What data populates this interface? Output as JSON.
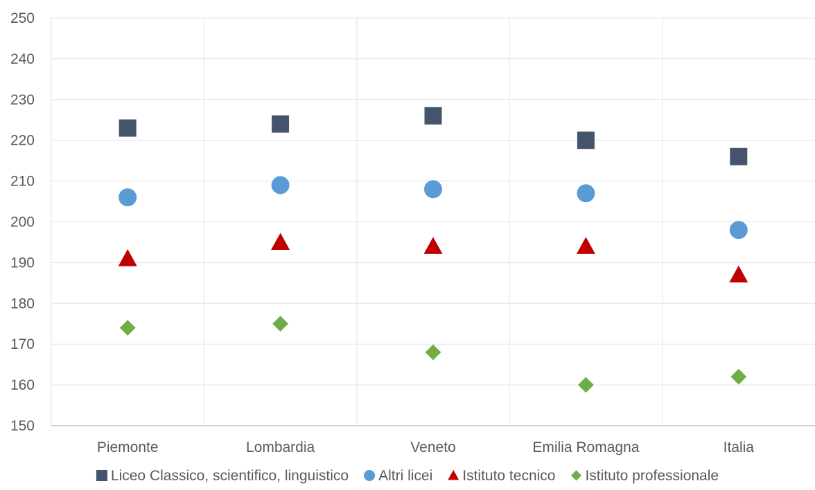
{
  "chart_data": {
    "type": "scatter",
    "title": "",
    "xlabel": "",
    "ylabel": "",
    "categories": [
      "Piemonte",
      "Lombardia",
      "Veneto",
      "Emilia Romagna",
      "Italia"
    ],
    "ylim": [
      150,
      250
    ],
    "yticks": [
      150,
      160,
      170,
      180,
      190,
      200,
      210,
      220,
      230,
      240,
      250
    ],
    "grid": true,
    "legend_position": "bottom",
    "series": [
      {
        "name": "Liceo Classico, scientifico, linguistico",
        "marker": "square",
        "color": "#44546A",
        "values": [
          223,
          224,
          226,
          220,
          216
        ]
      },
      {
        "name": "Altri licei",
        "marker": "circle",
        "color": "#5B9BD5",
        "values": [
          206,
          209,
          208,
          207,
          198
        ]
      },
      {
        "name": "Istituto tecnico",
        "marker": "triangle",
        "color": "#C00000",
        "values": [
          191,
          195,
          194,
          194,
          187
        ]
      },
      {
        "name": "Istituto professionale",
        "marker": "diamond",
        "color": "#70AD47",
        "values": [
          174,
          175,
          168,
          160,
          162
        ]
      }
    ]
  }
}
